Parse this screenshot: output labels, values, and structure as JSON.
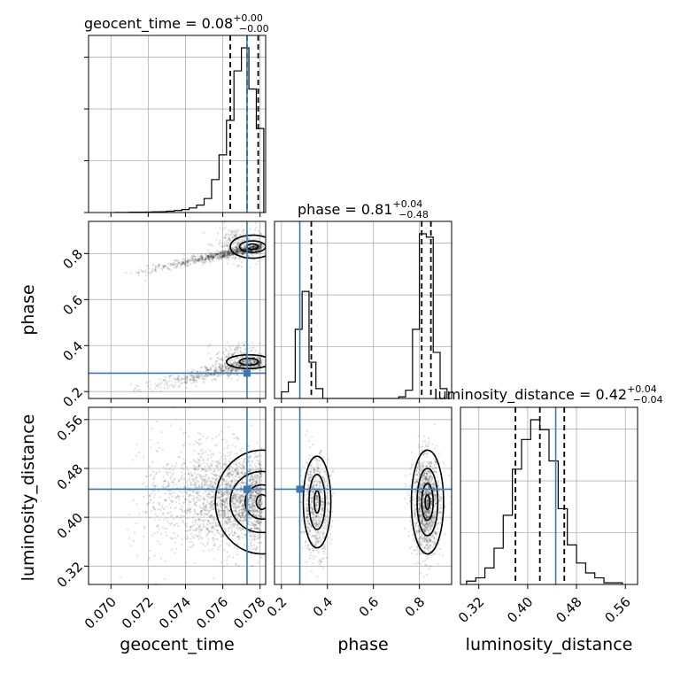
{
  "chart_data": {
    "type": "corner",
    "parameters": [
      "geocent_time",
      "phase",
      "luminosity_distance"
    ],
    "truth": {
      "geocent_time": 0.0773,
      "phase": 0.28,
      "luminosity_distance": 0.446
    },
    "ranges": {
      "geocent_time": [
        0.0688,
        0.0783
      ],
      "phase": [
        0.17,
        0.94
      ],
      "luminosity_distance": [
        0.29,
        0.58
      ]
    },
    "ticks": {
      "geocent_time": [
        "0.070",
        "0.072",
        "0.074",
        "0.076",
        "0.078"
      ],
      "phase_diag": [
        "0.2",
        "0.4",
        "0.6",
        "0.8"
      ],
      "phase_row": [
        "0.2",
        "0.4",
        "0.6",
        "0.8"
      ],
      "luminosity_distance": [
        "0.32",
        "0.40",
        "0.48",
        "0.56"
      ]
    },
    "titles": {
      "geocent_time": {
        "text": "geocent_time = 0.08",
        "plus": "+0.00",
        "minus": "−0.00"
      },
      "phase": {
        "text": "phase = 0.81",
        "plus": "+0.04",
        "minus": "−0.48"
      },
      "luminosity_distance": {
        "text": "luminosity_distance = 0.42",
        "plus": "+0.04",
        "minus": "−0.04"
      }
    },
    "histograms": {
      "geocent_time": {
        "bin_edges": [
          0.0702,
          0.0706,
          0.071,
          0.0714,
          0.0718,
          0.0722,
          0.0726,
          0.073,
          0.0734,
          0.0738,
          0.0742,
          0.0746,
          0.075,
          0.0754,
          0.0758,
          0.0762,
          0.0766,
          0.077,
          0.0774,
          0.0778,
          0.0782
        ],
        "counts": [
          1,
          1,
          2,
          2,
          3,
          4,
          5,
          8,
          12,
          18,
          28,
          45,
          85,
          200,
          350,
          560,
          860,
          1000,
          750,
          510
        ]
      },
      "phase": {
        "bin_edges": [
          0.2,
          0.23,
          0.26,
          0.29,
          0.32,
          0.35,
          0.38,
          0.41,
          0.44,
          0.47,
          0.5,
          0.53,
          0.56,
          0.59,
          0.62,
          0.65,
          0.68,
          0.71,
          0.74,
          0.77,
          0.8,
          0.83,
          0.86,
          0.89,
          0.92
        ],
        "counts": [
          4,
          10,
          42,
          65,
          22,
          6,
          0,
          0,
          0,
          0,
          0,
          0,
          0,
          0,
          0,
          0,
          0,
          1,
          5,
          42,
          100,
          98,
          28,
          6
        ]
      },
      "luminosity_distance": {
        "bin_edges": [
          0.3,
          0.315,
          0.33,
          0.345,
          0.36,
          0.375,
          0.39,
          0.405,
          0.42,
          0.435,
          0.45,
          0.465,
          0.48,
          0.495,
          0.51,
          0.525,
          0.54,
          0.555
        ],
        "counts": [
          2,
          4,
          10,
          22,
          42,
          70,
          88,
          100,
          94,
          75,
          46,
          24,
          13,
          7,
          4,
          1,
          1
        ]
      }
    },
    "quantiles": {
      "geocent_time": [
        0.0764,
        0.0773,
        0.0779
      ],
      "phase": [
        0.33,
        0.81,
        0.85
      ],
      "luminosity_distance": [
        0.38,
        0.42,
        0.46
      ]
    }
  }
}
